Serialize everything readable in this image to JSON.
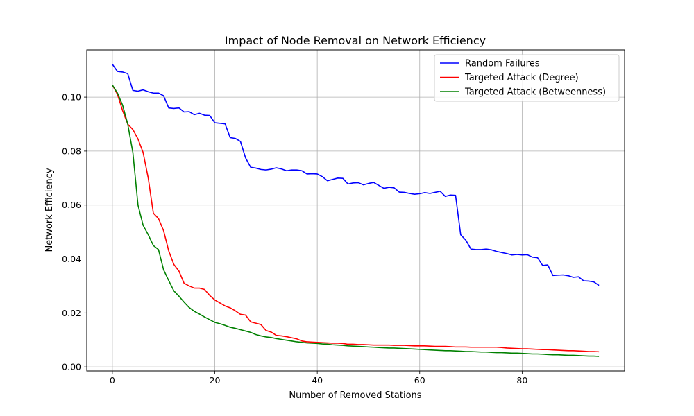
{
  "chart_data": {
    "type": "line",
    "title": "Impact of Node Removal on Network Efficiency",
    "xlabel": "Number of Removed Stations",
    "ylabel": "Network Efficiency",
    "xlim": [
      -5,
      100
    ],
    "ylim": [
      -0.0015,
      0.1175
    ],
    "xticks": [
      0,
      20,
      40,
      60,
      80
    ],
    "xtick_labels": [
      "0",
      "20",
      "40",
      "60",
      "80"
    ],
    "yticks": [
      0.0,
      0.02,
      0.04,
      0.06,
      0.08,
      0.1
    ],
    "ytick_labels": [
      "0.00",
      "0.02",
      "0.04",
      "0.06",
      "0.08",
      "0.10"
    ],
    "grid": true,
    "legend_position": "top-right",
    "series": [
      {
        "name": "Random Failures",
        "color": "#0000ff",
        "x": [
          0,
          1,
          2,
          3,
          4,
          5,
          6,
          7,
          8,
          9,
          10,
          11,
          12,
          13,
          14,
          15,
          16,
          17,
          18,
          19,
          20,
          21,
          22,
          23,
          24,
          25,
          26,
          27,
          28,
          29,
          30,
          31,
          32,
          33,
          34,
          35,
          36,
          37,
          38,
          39,
          40,
          41,
          42,
          43,
          44,
          45,
          46,
          47,
          48,
          49,
          50,
          51,
          52,
          53,
          54,
          55,
          56,
          57,
          58,
          59,
          60,
          61,
          62,
          63,
          64,
          65,
          66,
          67,
          68,
          69,
          70,
          71,
          72,
          73,
          74,
          75,
          76,
          77,
          78,
          79,
          80,
          81,
          82,
          83,
          84,
          85,
          86,
          87,
          88,
          89,
          90,
          91,
          92,
          93,
          94,
          95
        ],
        "y": [
          0.1122,
          0.1095,
          0.1093,
          0.1087,
          0.1025,
          0.1022,
          0.1027,
          0.102,
          0.1015,
          0.1015,
          0.1005,
          0.096,
          0.0958,
          0.096,
          0.0945,
          0.0946,
          0.0935,
          0.094,
          0.0933,
          0.0932,
          0.0905,
          0.0903,
          0.0901,
          0.085,
          0.0847,
          0.0836,
          0.0775,
          0.074,
          0.0737,
          0.0732,
          0.073,
          0.0733,
          0.0738,
          0.0734,
          0.0727,
          0.073,
          0.073,
          0.0727,
          0.0715,
          0.0716,
          0.0715,
          0.0705,
          0.069,
          0.0695,
          0.07,
          0.0699,
          0.0678,
          0.0682,
          0.0683,
          0.0675,
          0.068,
          0.0684,
          0.0673,
          0.0662,
          0.0666,
          0.0664,
          0.0648,
          0.0647,
          0.0643,
          0.064,
          0.0642,
          0.0646,
          0.0643,
          0.0647,
          0.0651,
          0.0632,
          0.0637,
          0.0636,
          0.049,
          0.047,
          0.0437,
          0.0435,
          0.0435,
          0.0437,
          0.0434,
          0.0428,
          0.0424,
          0.042,
          0.0415,
          0.0417,
          0.0415,
          0.0416,
          0.0407,
          0.0405,
          0.0376,
          0.0378,
          0.0339,
          0.034,
          0.0341,
          0.0338,
          0.0332,
          0.0334,
          0.0319,
          0.0318,
          0.0315,
          0.0302
        ]
      },
      {
        "name": "Targeted Attack (Degree)",
        "color": "#ff0000",
        "x": [
          0,
          1,
          2,
          3,
          4,
          5,
          6,
          7,
          8,
          9,
          10,
          11,
          12,
          13,
          14,
          15,
          16,
          17,
          18,
          19,
          20,
          21,
          22,
          23,
          24,
          25,
          26,
          27,
          28,
          29,
          30,
          31,
          32,
          33,
          34,
          35,
          36,
          37,
          38,
          39,
          40,
          41,
          42,
          43,
          44,
          45,
          46,
          47,
          48,
          49,
          50,
          51,
          52,
          53,
          54,
          55,
          56,
          57,
          58,
          59,
          60,
          61,
          62,
          63,
          64,
          65,
          66,
          67,
          68,
          69,
          70,
          71,
          72,
          73,
          74,
          75,
          76,
          77,
          78,
          79,
          80,
          81,
          82,
          83,
          84,
          85,
          86,
          87,
          88,
          89,
          90,
          91,
          92,
          93,
          94,
          95
        ],
        "y": [
          0.1045,
          0.101,
          0.095,
          0.09,
          0.088,
          0.0845,
          0.0795,
          0.07,
          0.057,
          0.055,
          0.0505,
          0.043,
          0.038,
          0.0355,
          0.031,
          0.03,
          0.0292,
          0.0292,
          0.0287,
          0.0265,
          0.0248,
          0.0237,
          0.0226,
          0.0219,
          0.0208,
          0.0195,
          0.0192,
          0.0167,
          0.0162,
          0.0157,
          0.0135,
          0.0129,
          0.0117,
          0.0115,
          0.0112,
          0.0108,
          0.0104,
          0.0096,
          0.0093,
          0.0092,
          0.0091,
          0.009,
          0.0089,
          0.0088,
          0.0088,
          0.0087,
          0.0084,
          0.0084,
          0.0083,
          0.0083,
          0.0082,
          0.0081,
          0.0081,
          0.0081,
          0.0081,
          0.008,
          0.008,
          0.008,
          0.0079,
          0.0078,
          0.0078,
          0.0078,
          0.0077,
          0.0076,
          0.0076,
          0.0076,
          0.0075,
          0.0074,
          0.0074,
          0.0074,
          0.0073,
          0.0073,
          0.0073,
          0.0073,
          0.0073,
          0.0073,
          0.0072,
          0.007,
          0.0069,
          0.0068,
          0.0067,
          0.0067,
          0.0066,
          0.0065,
          0.0064,
          0.0064,
          0.0063,
          0.0062,
          0.0061,
          0.006,
          0.006,
          0.0059,
          0.0058,
          0.0057,
          0.0057,
          0.0056
        ]
      },
      {
        "name": "Targeted Attack (Betweenness)",
        "color": "#008000",
        "x": [
          0,
          1,
          2,
          3,
          4,
          5,
          6,
          7,
          8,
          9,
          10,
          11,
          12,
          13,
          14,
          15,
          16,
          17,
          18,
          19,
          20,
          21,
          22,
          23,
          24,
          25,
          26,
          27,
          28,
          29,
          30,
          31,
          32,
          33,
          34,
          35,
          36,
          37,
          38,
          39,
          40,
          41,
          42,
          43,
          44,
          45,
          46,
          47,
          48,
          49,
          50,
          51,
          52,
          53,
          54,
          55,
          56,
          57,
          58,
          59,
          60,
          61,
          62,
          63,
          64,
          65,
          66,
          67,
          68,
          69,
          70,
          71,
          72,
          73,
          74,
          75,
          76,
          77,
          78,
          79,
          80,
          81,
          82,
          83,
          84,
          85,
          86,
          87,
          88,
          89,
          90,
          91,
          92,
          93,
          94,
          95
        ],
        "y": [
          0.1045,
          0.1015,
          0.097,
          0.09,
          0.0795,
          0.06,
          0.0525,
          0.049,
          0.045,
          0.0435,
          0.036,
          0.032,
          0.0282,
          0.0262,
          0.024,
          0.022,
          0.0206,
          0.0196,
          0.0185,
          0.0175,
          0.0165,
          0.016,
          0.0154,
          0.0147,
          0.0143,
          0.0138,
          0.0133,
          0.0128,
          0.012,
          0.0115,
          0.0111,
          0.0109,
          0.0105,
          0.0102,
          0.0099,
          0.0096,
          0.0093,
          0.0091,
          0.0089,
          0.0088,
          0.0087,
          0.0085,
          0.0084,
          0.0082,
          0.0081,
          0.008,
          0.0078,
          0.0077,
          0.0076,
          0.0075,
          0.0074,
          0.0073,
          0.0072,
          0.0071,
          0.007,
          0.007,
          0.0069,
          0.0068,
          0.0067,
          0.0066,
          0.0065,
          0.0064,
          0.0063,
          0.0062,
          0.0061,
          0.006,
          0.006,
          0.0059,
          0.0058,
          0.0057,
          0.0057,
          0.0056,
          0.0055,
          0.0055,
          0.0054,
          0.0053,
          0.0053,
          0.0052,
          0.0051,
          0.0051,
          0.005,
          0.0049,
          0.0048,
          0.0048,
          0.0047,
          0.0046,
          0.0045,
          0.0045,
          0.0044,
          0.0043,
          0.0043,
          0.0042,
          0.0041,
          0.004,
          0.004,
          0.0039
        ]
      }
    ]
  }
}
